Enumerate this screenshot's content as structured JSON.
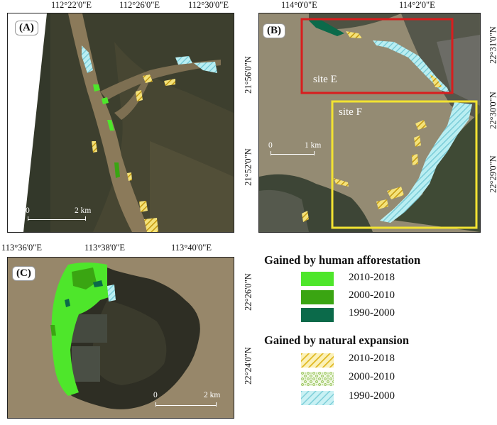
{
  "panels": {
    "a": {
      "label": "(A)",
      "top_ticks": [
        "112°22'0\"E",
        "112°26'0\"E",
        "112°30'0\"E"
      ],
      "right_ticks": [
        "21°56'0\"N",
        "21°52'0\"N"
      ],
      "scale": {
        "zero": "0",
        "end": "2 km"
      }
    },
    "b": {
      "label": "(B)",
      "top_ticks": [
        "114°0'0\"E",
        "114°2'0\"E"
      ],
      "right_ticks": [
        "22°31'0\"N",
        "22°30'0\"N",
        "22°29'0\"N"
      ],
      "scale": {
        "zero": "0",
        "end": "1 km"
      },
      "site_e": "site E",
      "site_f": "site F"
    },
    "c": {
      "label": "(C)",
      "top_ticks": [
        "113°36'0\"E",
        "113°38'0\"E",
        "113°40'0\"E"
      ],
      "right_ticks": [
        "22°26'0\"N",
        "22°24'0\"N"
      ],
      "scale": {
        "zero": "0",
        "end": "2 km"
      }
    }
  },
  "legend": {
    "human_title": "Gained by human afforestation",
    "human_items": [
      {
        "label": "2010-2018",
        "color": "#4ee62b"
      },
      {
        "label": "2000-2010",
        "color": "#3aa512"
      },
      {
        "label": "1990-2000",
        "color": "#0b6a4a"
      }
    ],
    "natural_title": "Gained by natural expansion",
    "natural_items": [
      {
        "label": "2010-2018",
        "pattern": "yellow-diagonal-hatch",
        "color": "#e9c93a"
      },
      {
        "label": "2000-2010",
        "pattern": "green-stipple",
        "color": "#a5cf6a"
      },
      {
        "label": "1990-2000",
        "pattern": "cyan-diagonal-hatch",
        "color": "#9fe1e8"
      }
    ]
  }
}
